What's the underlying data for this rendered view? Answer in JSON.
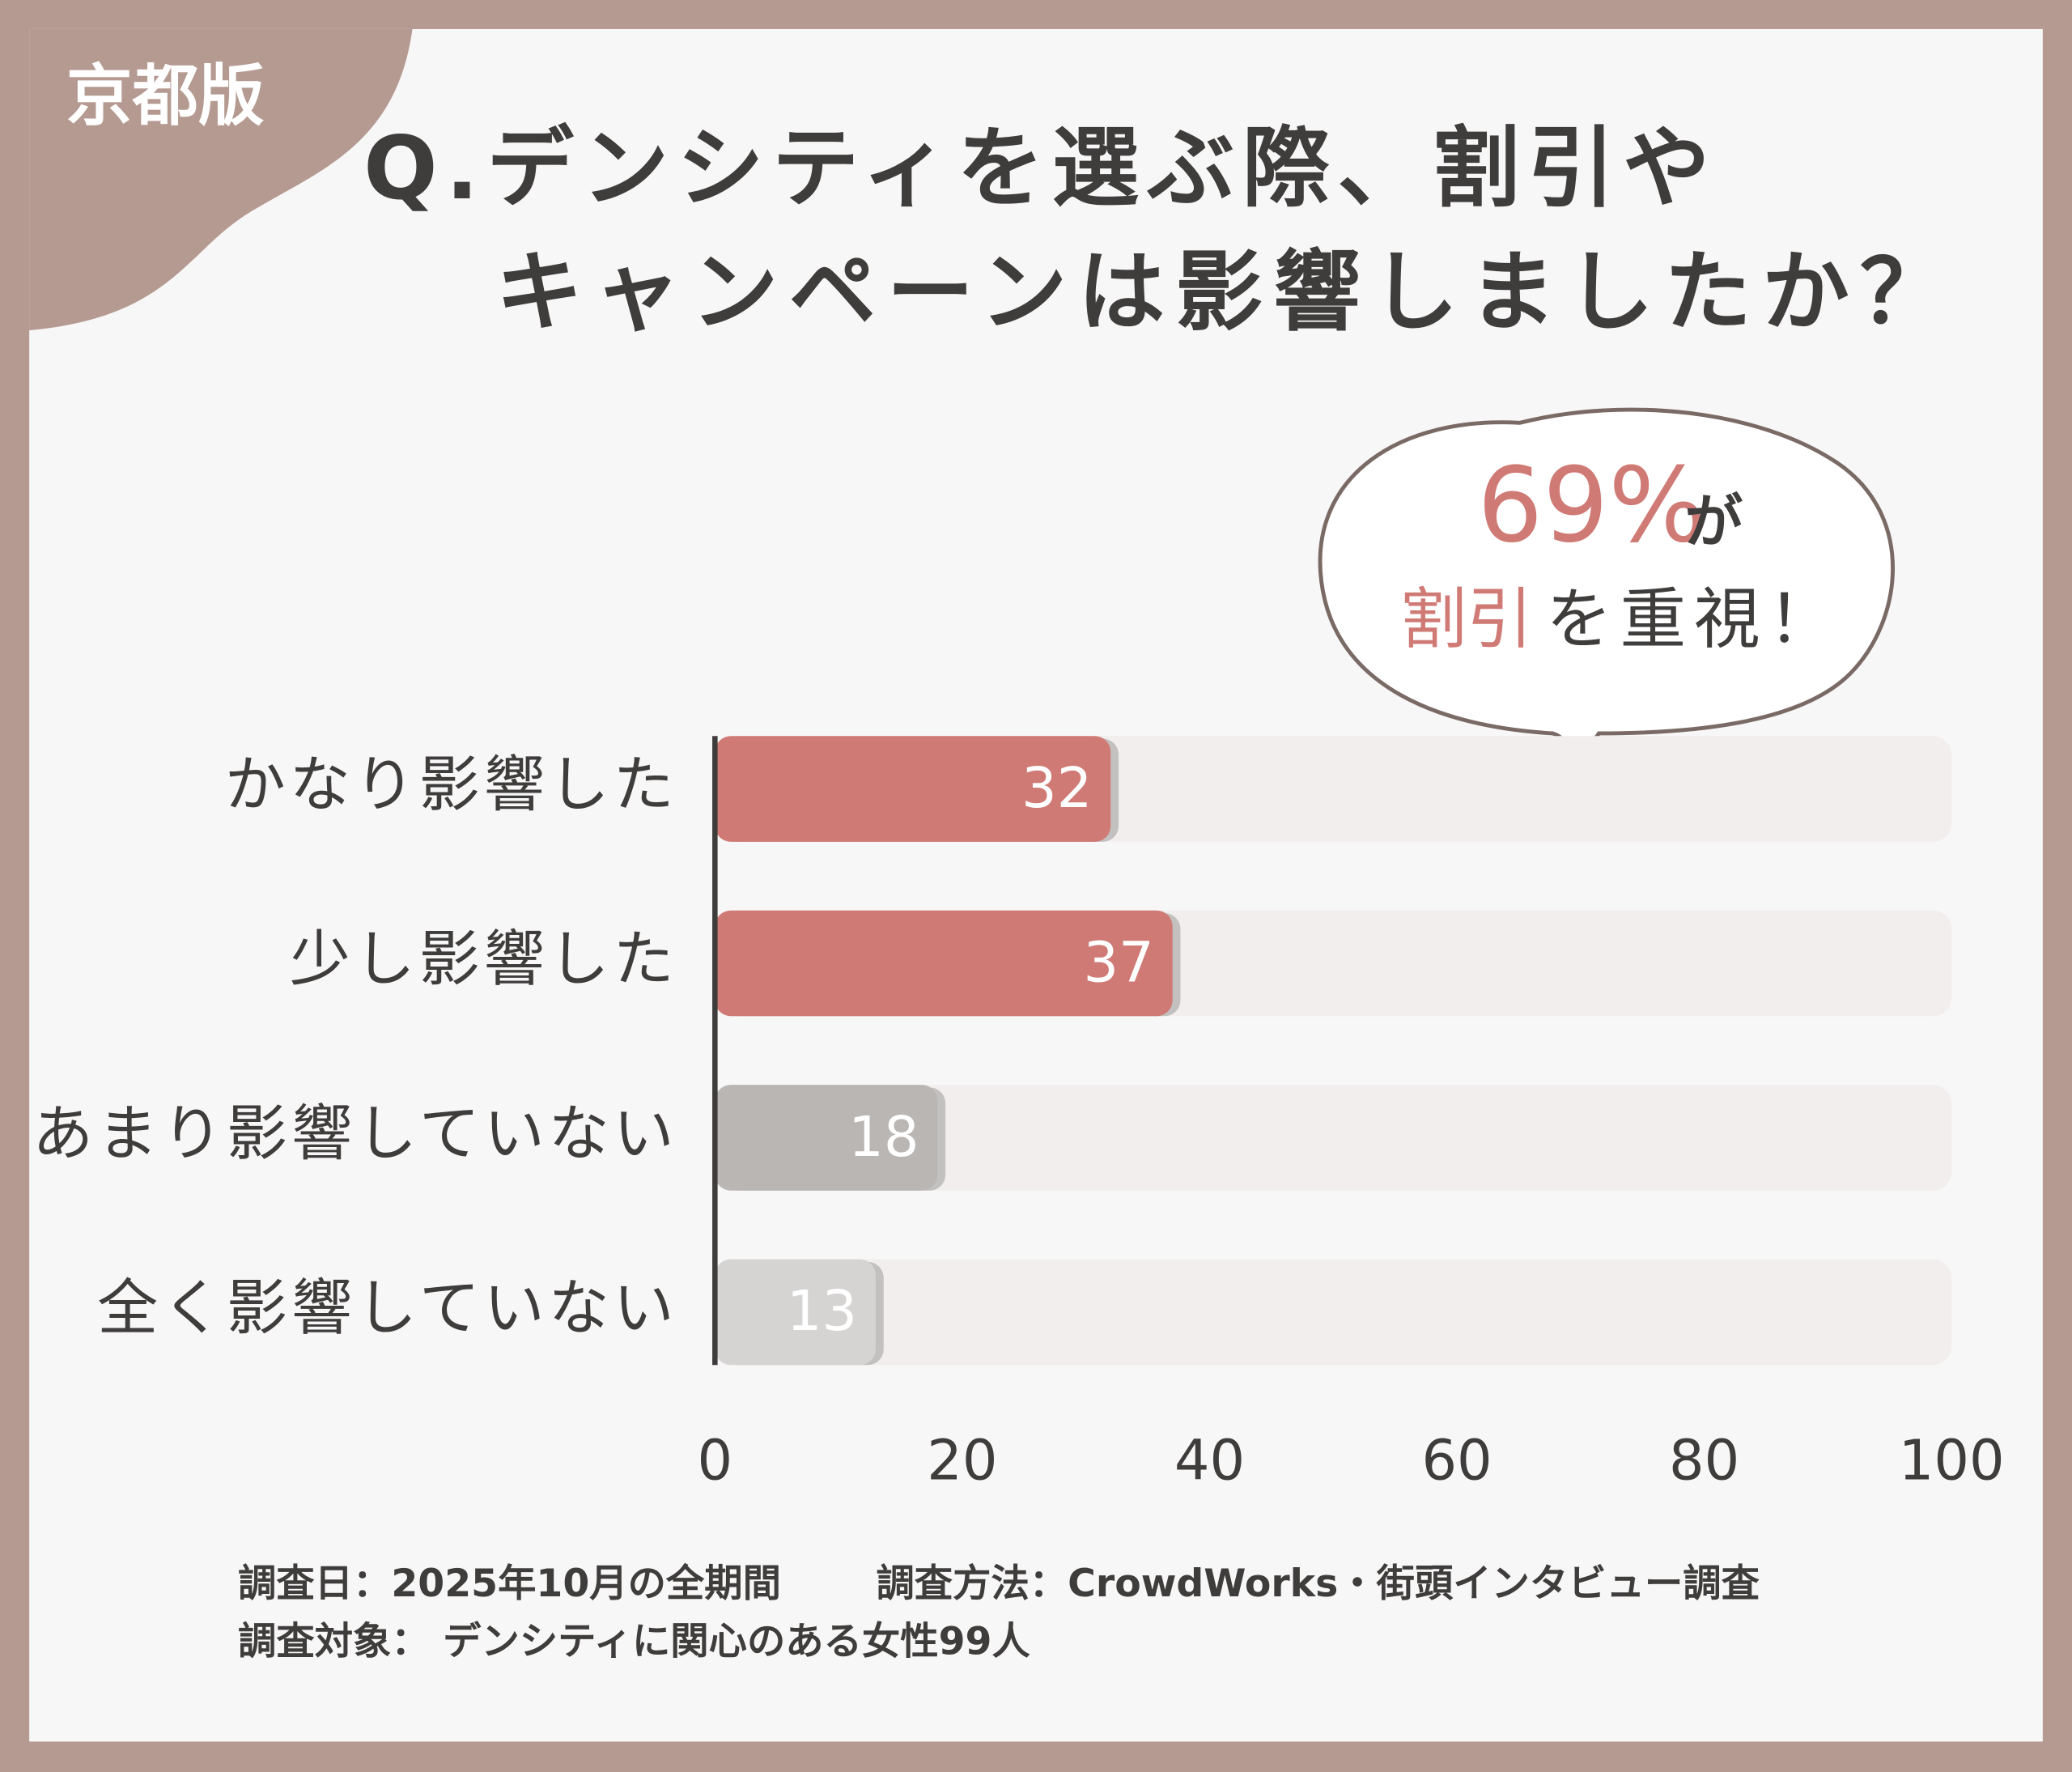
{
  "badge": "京都版",
  "chart_data": {
    "type": "bar",
    "orientation": "horizontal",
    "title_lines": [
      "Q.デンシティを選ぶ際、割引や",
      "キャンペーンは影響しましたか？"
    ],
    "categories": [
      "かなり影響した",
      "少し影響した",
      "あまり影響していない",
      "全く影響していない"
    ],
    "values": [
      32,
      37,
      18,
      13
    ],
    "colors": [
      "#d07a75",
      "#d07a75",
      "#b9b6b4",
      "#d6d4d3"
    ],
    "track_color": "#f1eeed",
    "xlim": [
      0,
      100
    ],
    "xticks": [
      0,
      20,
      40,
      60,
      80,
      100
    ],
    "callout": {
      "highlight1": "69%",
      "text1": "が",
      "highlight2": "割引",
      "text2": "を重視！"
    }
  },
  "footer": {
    "date": "調査日：2025年10月の全期間",
    "method": "調査方法：CrowdWorks・街頭インタビュー調査",
    "target": "調査対象： デンシティに関心のある女性99人"
  }
}
